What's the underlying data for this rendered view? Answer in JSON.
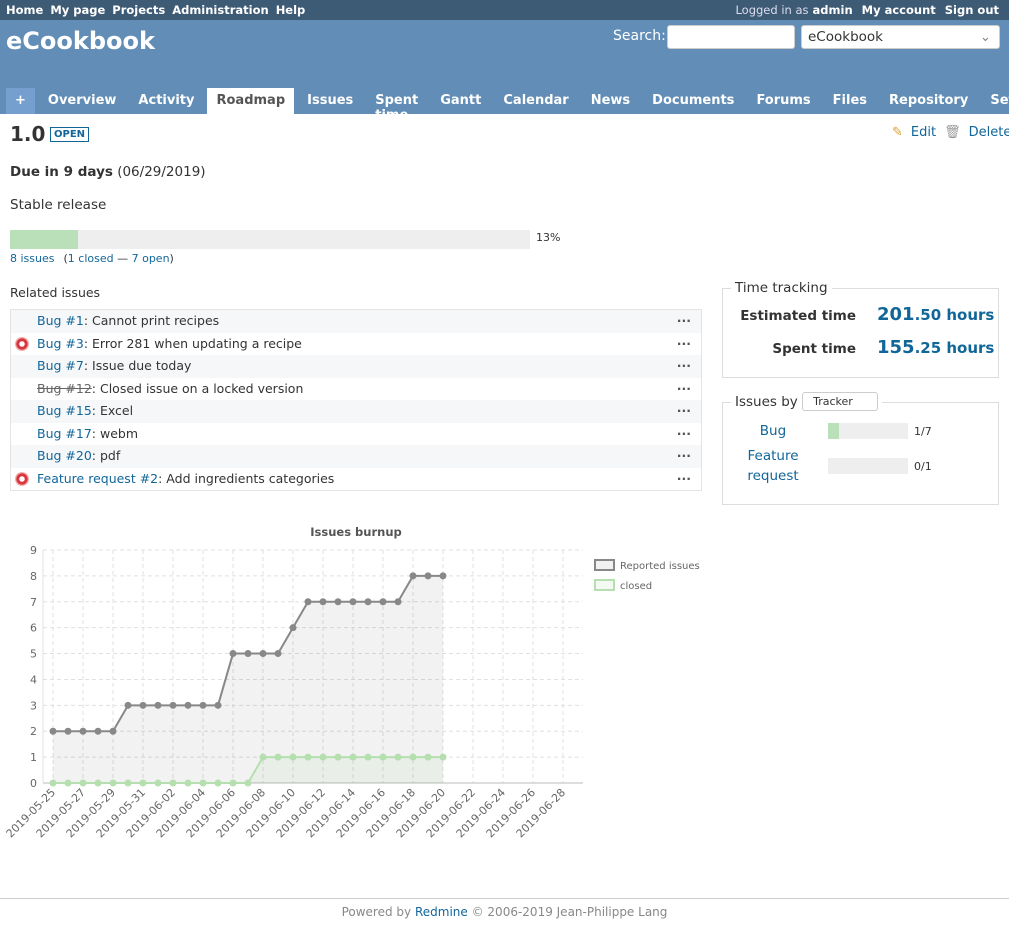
{
  "top_menu": {
    "left": [
      "Home",
      "My page",
      "Projects",
      "Administration",
      "Help"
    ],
    "logged_in_as": "Logged in as",
    "user": "admin",
    "right": [
      "My account",
      "Sign out"
    ]
  },
  "header": {
    "title": "eCookbook",
    "search_label": "Search:",
    "project_select": "eCookbook"
  },
  "tabs": {
    "items": [
      "+",
      "Overview",
      "Activity",
      "Roadmap",
      "Issues",
      "Spent time",
      "Gantt",
      "Calendar",
      "News",
      "Documents",
      "Forums",
      "Files",
      "Repository",
      "Settings"
    ],
    "selected": 3
  },
  "version": {
    "name": "1.0",
    "status": "OPEN",
    "edit": "Edit",
    "delete": "Delete",
    "due": "Due in 9 days",
    "due_date": "(06/29/2019)",
    "description": "Stable release",
    "progress": 13,
    "progress_label": "13%",
    "issue_count": "8 issues",
    "summary": [
      {
        "text": "(",
        "link": false
      },
      {
        "text": "1 closed",
        "link": true
      },
      {
        "text": " — ",
        "link": false
      },
      {
        "text": "7 open",
        "link": true
      },
      {
        "text": ")",
        "link": false
      }
    ]
  },
  "related_issues": {
    "title": "Related issues",
    "menu": "...",
    "rows": [
      {
        "link": "Bug #1",
        "subject": ": Cannot print recipes",
        "icon": false,
        "closed": false
      },
      {
        "link": "Bug #3",
        "subject": ": Error 281 when updating a recipe",
        "icon": true,
        "closed": false
      },
      {
        "link": "Bug #7",
        "subject": ": Issue due today",
        "icon": false,
        "closed": false
      },
      {
        "link": "Bug #12",
        "subject": ": Closed issue on a locked version",
        "icon": false,
        "closed": true
      },
      {
        "link": "Bug #15",
        "subject": ": Excel",
        "icon": false,
        "closed": false
      },
      {
        "link": "Bug #17",
        "subject": ": webm",
        "icon": false,
        "closed": false
      },
      {
        "link": "Bug #20",
        "subject": ": pdf",
        "icon": false,
        "closed": false
      },
      {
        "link": "Feature request #2",
        "subject": ": Add ingredients categories",
        "icon": true,
        "closed": false
      }
    ]
  },
  "time_tracking": {
    "title": "Time tracking",
    "rows": [
      {
        "label": "Estimated time",
        "whole": "201",
        "fraction": ".50 hours"
      },
      {
        "label": "Spent time",
        "whole": "155",
        "fraction": ".25 hours"
      }
    ]
  },
  "issues_by": {
    "title": "Issues by",
    "select": "Tracker",
    "rows": [
      {
        "tracker": "Bug",
        "closed": 1,
        "total": 7,
        "label": "1/7"
      },
      {
        "tracker": "Feature request",
        "closed": 0,
        "total": 1,
        "label": "0/1"
      }
    ]
  },
  "footer": {
    "prefix": "Powered by",
    "link": "Redmine",
    "suffix": "© 2006-2019 Jean-Philippe Lang"
  },
  "chart_data": {
    "type": "line",
    "title": "Issues burnup",
    "x": [
      "2019-05-25",
      null,
      "2019-05-27",
      null,
      "2019-05-29",
      null,
      "2019-05-31",
      null,
      "2019-06-02",
      null,
      "2019-06-04",
      null,
      "2019-06-06",
      null,
      "2019-06-08",
      null,
      "2019-06-10",
      null,
      "2019-06-12",
      null,
      "2019-06-14",
      null,
      "2019-06-16",
      null,
      "2019-06-18",
      null,
      "2019-06-20",
      null,
      "2019-06-22",
      null,
      "2019-06-24",
      null,
      "2019-06-26",
      null,
      "2019-06-28"
    ],
    "series": [
      {
        "name": "Reported issues",
        "color": "#888888",
        "fill": "rgba(0,0,0,0.05)",
        "values": [
          2,
          2,
          2,
          2,
          2,
          3,
          3,
          3,
          3,
          3,
          3,
          3,
          5,
          5,
          5,
          5,
          6,
          7,
          7,
          7,
          7,
          7,
          7,
          7,
          8,
          8,
          8,
          null,
          null,
          null,
          null,
          null,
          null,
          null,
          null
        ]
      },
      {
        "name": "closed",
        "color": "#b6dfb0",
        "fill": "rgba(182,223,176,0.15)",
        "values": [
          0,
          0,
          0,
          0,
          0,
          0,
          0,
          0,
          0,
          0,
          0,
          0,
          0,
          0,
          1,
          1,
          1,
          1,
          1,
          1,
          1,
          1,
          1,
          1,
          1,
          1,
          1,
          null,
          null,
          null,
          null,
          null,
          null,
          null,
          null
        ]
      }
    ],
    "ylim": [
      0,
      9
    ],
    "yticks": [
      0,
      1,
      2,
      3,
      4,
      5,
      6,
      7,
      8,
      9
    ],
    "grid": true,
    "legend": "right"
  }
}
